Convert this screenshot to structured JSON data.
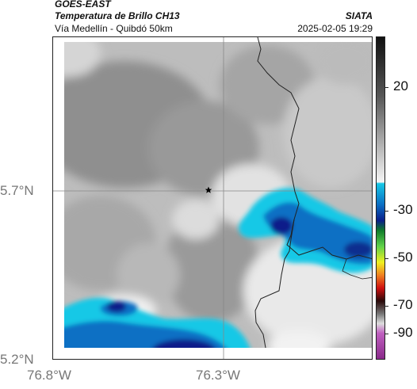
{
  "header": {
    "satellite": "GOES-EAST",
    "product": "Temperatura de Brillo CH13",
    "region": "Vía Medellín - Quibdó 50km",
    "agency": "SIATA",
    "datetime": "2025-02-05 19:29"
  },
  "map": {
    "lat_labels": [
      "5.7°N",
      "5.2°N"
    ],
    "lon_labels": [
      "76.8°W",
      "76.3°W"
    ],
    "marker": "star-icon",
    "colors": {
      "cloud_cyan": "#17c8e6",
      "cloud_blue": "#0b6fc4",
      "cloud_deep": "#0a1f8a",
      "cloud_green": "#29b34a",
      "border": "#222222"
    }
  },
  "colorbar": {
    "labels": [
      "20",
      "-30",
      "-50",
      "-70",
      "-90"
    ]
  }
}
